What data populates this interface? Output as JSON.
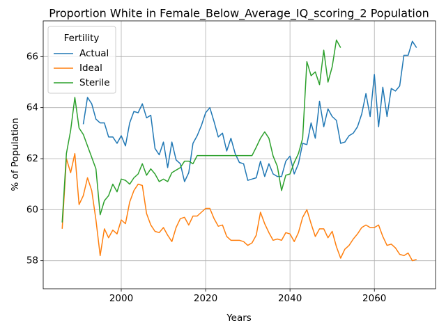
{
  "chart_data": {
    "type": "line",
    "title": "Proportion White in Female_Below_Average_IQ_scoring_2 Population",
    "x_label": "Years",
    "y_label": "% of Population",
    "legend_title": "Fertility",
    "legend_position": "upper left",
    "grid": true,
    "x": [
      1986,
      1987,
      1988,
      1989,
      1990,
      1991,
      1992,
      1993,
      1994,
      1995,
      1996,
      1997,
      1998,
      1999,
      2000,
      2001,
      2002,
      2003,
      2004,
      2005,
      2006,
      2007,
      2008,
      2009,
      2010,
      2011,
      2012,
      2013,
      2014,
      2015,
      2016,
      2017,
      2018,
      2019,
      2020,
      2021,
      2022,
      2023,
      2024,
      2025,
      2026,
      2027,
      2028,
      2029,
      2030,
      2031,
      2032,
      2033,
      2034,
      2035,
      2036,
      2037,
      2038,
      2039,
      2040,
      2041,
      2042,
      2043,
      2044,
      2045,
      2046,
      2047,
      2048,
      2049,
      2050,
      2051,
      2052,
      2053,
      2054,
      2055,
      2056,
      2057,
      2058,
      2059,
      2060,
      2061,
      2062,
      2063,
      2064,
      2065,
      2066,
      2067,
      2068,
      2069,
      2070
    ],
    "xlim": [
      1981.5,
      2074.5
    ],
    "xticks": [
      2000,
      2020,
      2040,
      2060
    ],
    "ylim": [
      56.9,
      67.4
    ],
    "yticks": [
      58,
      60,
      62,
      64,
      66
    ],
    "series": [
      {
        "name": "Actual",
        "color": "#1f77b4",
        "values": [
          null,
          null,
          null,
          null,
          null,
          63.35,
          64.4,
          64.15,
          63.55,
          63.4,
          63.4,
          62.85,
          62.85,
          62.6,
          62.9,
          62.5,
          63.4,
          63.85,
          63.8,
          64.15,
          63.6,
          63.7,
          62.4,
          62.15,
          62.65,
          61.65,
          62.65,
          61.95,
          61.8,
          61.1,
          61.45,
          62.6,
          62.9,
          63.3,
          63.8,
          64.0,
          63.45,
          62.85,
          63.0,
          62.3,
          62.8,
          62.2,
          61.85,
          61.8,
          61.15,
          61.2,
          61.25,
          61.9,
          61.3,
          61.8,
          61.4,
          61.3,
          61.3,
          61.9,
          62.1,
          61.4,
          61.8,
          62.6,
          62.55,
          63.4,
          62.8,
          64.25,
          63.25,
          63.95,
          63.65,
          63.5,
          62.6,
          62.65,
          62.9,
          63.0,
          63.25,
          63.75,
          64.55,
          63.65,
          65.3,
          63.25,
          64.8,
          63.65,
          64.75,
          64.65,
          64.85,
          66.05,
          66.05,
          66.6,
          66.35
        ]
      },
      {
        "name": "Ideal",
        "color": "#ff7f0e",
        "values": [
          59.25,
          62.0,
          61.45,
          62.2,
          60.2,
          60.55,
          61.25,
          60.75,
          59.6,
          58.2,
          59.25,
          58.9,
          59.2,
          59.05,
          59.6,
          59.45,
          60.3,
          60.75,
          61.0,
          60.95,
          59.85,
          59.4,
          59.15,
          59.1,
          59.3,
          59.0,
          58.75,
          59.3,
          59.65,
          59.7,
          59.4,
          59.75,
          59.75,
          59.9,
          60.05,
          60.05,
          59.65,
          59.35,
          59.4,
          58.95,
          58.8,
          58.8,
          58.8,
          58.75,
          58.6,
          58.7,
          59.0,
          59.9,
          59.45,
          59.1,
          58.8,
          58.85,
          58.8,
          59.1,
          59.05,
          58.75,
          59.1,
          59.7,
          60.0,
          59.45,
          58.95,
          59.25,
          59.25,
          58.9,
          59.15,
          58.55,
          58.1,
          58.45,
          58.6,
          58.85,
          59.05,
          59.3,
          59.4,
          59.3,
          59.3,
          59.4,
          58.95,
          58.6,
          58.65,
          58.5,
          58.25,
          58.2,
          58.3,
          58.0,
          58.05
        ]
      },
      {
        "name": "Sterile",
        "color": "#2ca02c",
        "values": [
          59.5,
          62.2,
          63.1,
          64.4,
          63.2,
          62.95,
          62.5,
          62.05,
          61.6,
          59.8,
          60.35,
          60.55,
          61.0,
          60.7,
          61.2,
          61.15,
          61.0,
          61.25,
          61.4,
          61.8,
          61.35,
          61.6,
          61.4,
          61.1,
          61.2,
          61.1,
          61.45,
          61.55,
          61.65,
          61.9,
          61.9,
          61.8,
          62.12,
          62.12,
          62.12,
          62.12,
          62.12,
          62.12,
          62.12,
          62.12,
          62.12,
          62.12,
          62.12,
          62.12,
          62.12,
          62.12,
          62.45,
          62.8,
          63.05,
          62.8,
          62.1,
          61.7,
          60.75,
          61.35,
          61.4,
          61.85,
          62.2,
          62.8,
          65.8,
          65.25,
          65.4,
          64.9,
          66.25,
          65.0,
          65.6,
          66.65,
          66.35,
          null,
          null,
          null,
          null,
          null,
          null,
          null,
          null,
          null,
          null,
          null,
          null,
          null,
          null,
          null,
          null,
          null,
          null
        ]
      }
    ]
  }
}
